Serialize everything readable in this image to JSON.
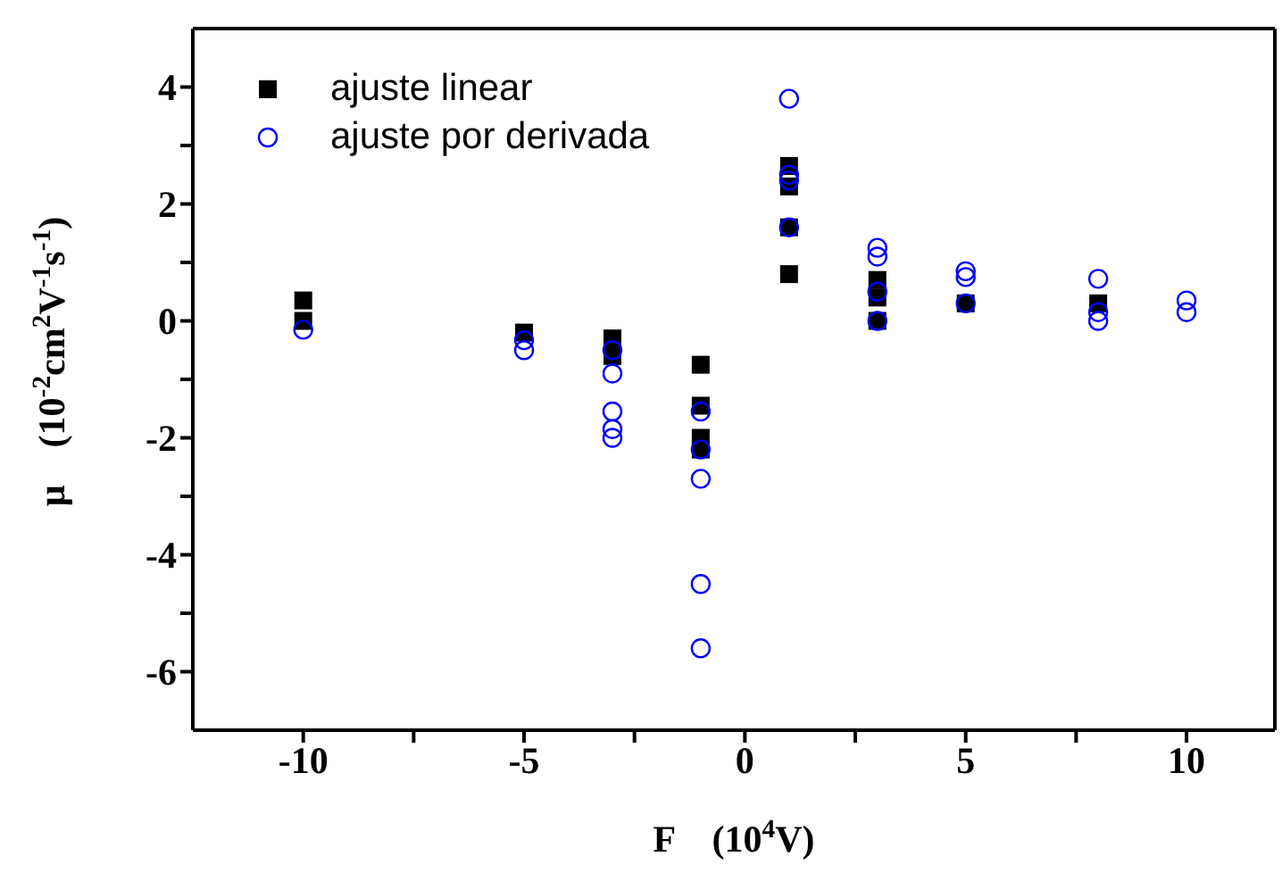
{
  "chart_data": {
    "type": "scatter",
    "xlabel": "F    (10$^{4}$V)",
    "ylabel": "μ    (10$^{-2}$cm$^{2}$V$^{-1}$s$^{-1}$)",
    "xlim": [
      -12.5,
      12
    ],
    "ylim": [
      -7,
      5
    ],
    "xticks": [
      -10,
      {
        "value": -7.5,
        "label": null
      },
      -5,
      {
        "value": -2.5,
        "label": null
      },
      0,
      {
        "value": 2.5,
        "label": null
      },
      5,
      {
        "value": 7.5,
        "label": null
      },
      10
    ],
    "yticks": [
      -6,
      {
        "value": -5,
        "label": null
      },
      -4,
      {
        "value": -3,
        "label": null
      },
      -2,
      {
        "value": -1,
        "label": null
      },
      0,
      {
        "value": 1,
        "label": null
      },
      2,
      {
        "value": 3,
        "label": null
      },
      4
    ],
    "grid": false,
    "legend": "top left",
    "series": [
      {
        "name": "ajuste linear",
        "color": "#000000",
        "marker": "square",
        "x": [
          -10,
          -10,
          -5,
          -3,
          -3,
          -1,
          -1,
          -1,
          -1,
          1,
          1,
          1,
          1,
          3,
          3,
          3,
          5,
          8
        ],
        "values": [
          0.35,
          0,
          -0.2,
          -0.3,
          -0.6,
          -0.75,
          -1.45,
          -2.0,
          -2.2,
          2.65,
          2.3,
          1.6,
          0.8,
          0.7,
          0.4,
          0,
          0.3,
          0.3
        ]
      },
      {
        "name": "ajuste por derivada",
        "color": "#0000ff",
        "marker": "circle",
        "x": [
          -10,
          -5,
          -5,
          -3,
          -3,
          -3,
          -3,
          -3,
          -1,
          -1,
          -1,
          -1,
          -1,
          1,
          1,
          1,
          1,
          3,
          3,
          3,
          3,
          5,
          5,
          5,
          8,
          8,
          8,
          10,
          10
        ],
        "values": [
          -0.15,
          -0.33,
          -0.5,
          -0.5,
          -0.9,
          -1.55,
          -1.85,
          -2.0,
          -1.55,
          -2.2,
          -2.7,
          -4.5,
          -5.6,
          3.8,
          2.5,
          2.4,
          1.6,
          1.25,
          1.1,
          0.5,
          0,
          0.85,
          0.75,
          0.3,
          0.72,
          0.15,
          0,
          0.35,
          0.15
        ]
      }
    ]
  }
}
